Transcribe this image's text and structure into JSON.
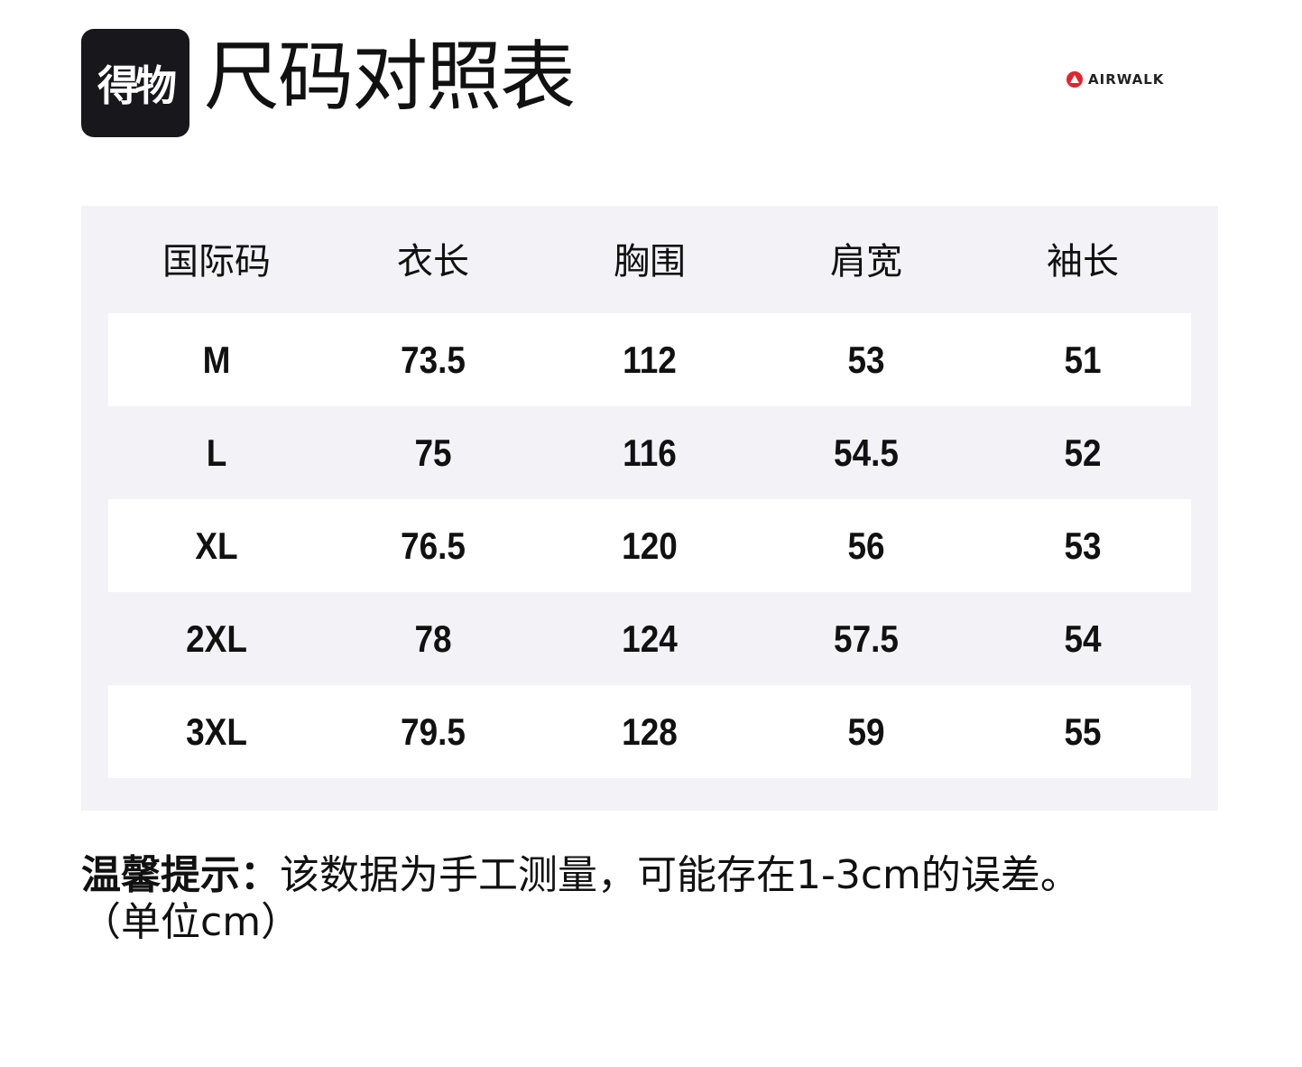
{
  "header": {
    "logo_text": "得物",
    "title": "尺码对照表",
    "brand": "AIRWALK"
  },
  "table": {
    "columns": [
      "国际码",
      "衣长",
      "胸围",
      "肩宽",
      "袖长"
    ],
    "rows": [
      [
        "M",
        "73.5",
        "112",
        "53",
        "51"
      ],
      [
        "L",
        "75",
        "116",
        "54.5",
        "52"
      ],
      [
        "XL",
        "76.5",
        "120",
        "56",
        "53"
      ],
      [
        "2XL",
        "78",
        "124",
        "57.5",
        "54"
      ],
      [
        "3XL",
        "79.5",
        "128",
        "59",
        "55"
      ]
    ]
  },
  "note": {
    "label": "温馨提示：",
    "text": "该数据为手工测量，可能存在1-3cm的误差。",
    "unit": "（单位cm）"
  }
}
